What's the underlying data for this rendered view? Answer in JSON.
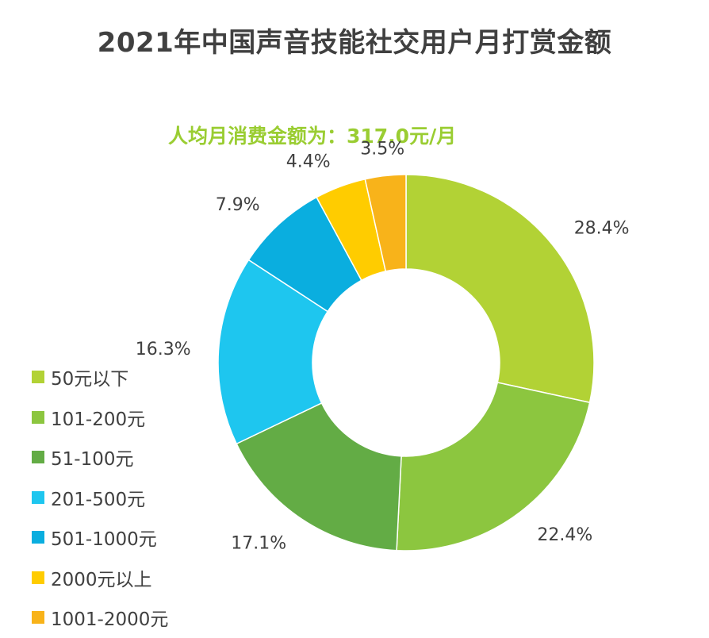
{
  "title": "2021年中国声音技能社交用户月打赏金额",
  "subtitle": "人均月消费金额为：317.0元/月",
  "colors": {
    "title": "#404040",
    "subtitle": "#9ACD32",
    "labels": "#404040"
  },
  "chart_data": {
    "type": "donut",
    "title": "2021年中国声音技能社交用户月打赏金额",
    "subtitle": "人均月消费金额为：317.0元/月",
    "unit": "%",
    "legend_position": "bottom-left",
    "slices": [
      {
        "label": "50元以下",
        "value": 28.4,
        "display": "28.4%",
        "color": "#B2D235"
      },
      {
        "label": "101-200元",
        "value": 22.4,
        "display": "22.4%",
        "color": "#8CC63F"
      },
      {
        "label": "51-100元",
        "value": 17.1,
        "display": "17.1%",
        "color": "#63AC45"
      },
      {
        "label": "201-500元",
        "value": 16.3,
        "display": "16.3%",
        "color": "#1EC6EF"
      },
      {
        "label": "501-1000元",
        "value": 7.9,
        "display": "7.9%",
        "color": "#0AAEDF"
      },
      {
        "label": "2000元以上",
        "value": 4.4,
        "display": "4.4%",
        "color": "#FFCC00"
      },
      {
        "label": "1001-2000元",
        "value": 3.5,
        "display": "3.5%",
        "color": "#F8B31A"
      }
    ]
  }
}
